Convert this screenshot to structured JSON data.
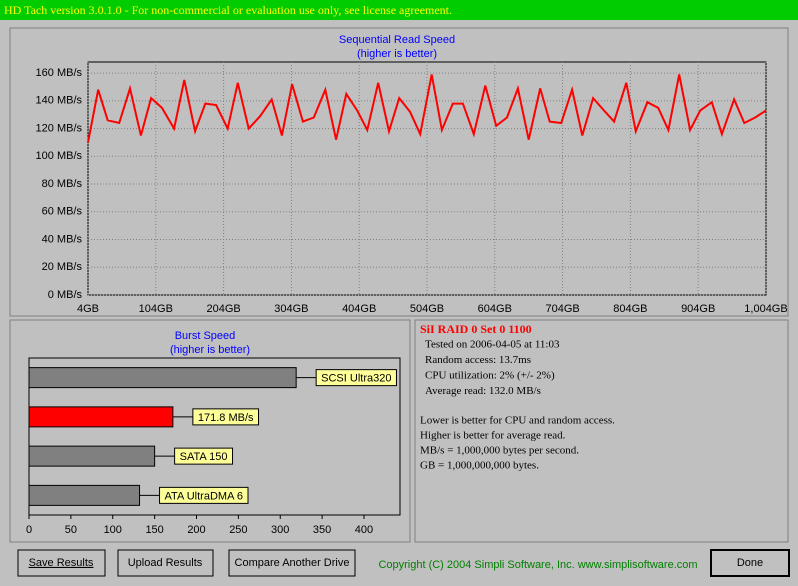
{
  "window_title": "HD Tach version 3.0.1.0  - For non-commercial or evaluation use only, see license agreement.",
  "chart_data": [
    {
      "type": "line",
      "title": "Sequential Read Speed",
      "subtitle": "(higher is better)",
      "color": "#ff0000",
      "grid": true,
      "x": [
        4,
        19,
        33,
        50,
        66,
        82,
        97,
        113,
        131,
        146,
        162,
        177,
        193,
        210,
        225,
        241,
        258,
        275,
        290,
        305,
        321,
        337,
        354,
        370,
        385,
        401,
        416,
        432,
        448,
        463,
        479,
        494,
        511,
        526,
        542,
        557,
        573,
        590,
        606,
        622,
        638,
        654,
        671,
        685,
        702,
        718,
        733,
        749,
        765,
        780,
        798,
        812,
        829,
        845,
        860,
        876,
        892,
        907,
        924,
        939,
        957,
        972,
        988,
        1004
      ],
      "values": [
        110,
        148,
        126,
        124,
        149,
        115,
        142,
        135,
        120,
        155,
        118,
        138,
        137,
        120,
        153,
        120,
        129,
        141,
        115,
        152,
        125,
        128,
        148,
        112,
        145,
        133,
        119,
        153,
        118,
        142,
        132,
        116,
        159,
        119,
        138,
        138,
        116,
        151,
        122,
        128,
        149,
        112,
        149,
        125,
        124,
        148,
        115,
        142,
        133,
        125,
        153,
        118,
        139,
        135,
        119,
        159,
        119,
        133,
        139,
        116,
        141,
        124,
        128,
        133
      ],
      "xlim": [
        4,
        1004
      ],
      "ylim": [
        0,
        168
      ],
      "xticks": [
        {
          "value": 4,
          "label": "4GB"
        },
        {
          "value": 104,
          "label": "104GB"
        },
        {
          "value": 204,
          "label": "204GB"
        },
        {
          "value": 304,
          "label": "304GB"
        },
        {
          "value": 404,
          "label": "404GB"
        },
        {
          "value": 504,
          "label": "504GB"
        },
        {
          "value": 604,
          "label": "604GB"
        },
        {
          "value": 704,
          "label": "704GB"
        },
        {
          "value": 804,
          "label": "804GB"
        },
        {
          "value": 904,
          "label": "904GB"
        },
        {
          "value": 1004,
          "label": "1,004GB"
        }
      ],
      "yticks": [
        {
          "value": 0,
          "label": "0 MB/s"
        },
        {
          "value": 20,
          "label": "20 MB/s"
        },
        {
          "value": 40,
          "label": "40 MB/s"
        },
        {
          "value": 60,
          "label": "60 MB/s"
        },
        {
          "value": 80,
          "label": "80 MB/s"
        },
        {
          "value": 100,
          "label": "100 MB/s"
        },
        {
          "value": 120,
          "label": "120 MB/s"
        },
        {
          "value": 140,
          "label": "140 MB/s"
        },
        {
          "value": 160,
          "label": "160 MB/s"
        }
      ]
    },
    {
      "type": "bar",
      "orientation": "horizontal",
      "title": "Burst Speed",
      "subtitle": "(higher is better)",
      "categories": [
        "SCSI Ultra320",
        "171.8 MB/s",
        "SATA 150",
        "ATA UltraDMA 6"
      ],
      "values": [
        319,
        171.8,
        150,
        132
      ],
      "colors": [
        "#808080",
        "#ff0000",
        "#808080",
        "#808080"
      ],
      "xlim": [
        0,
        443
      ],
      "xticks": [
        0,
        50,
        100,
        150,
        200,
        250,
        300,
        350,
        400
      ]
    }
  ],
  "info": {
    "title": "SiI RAID 0 Set 0 1100",
    "lines": [
      "Tested on 2006-04-05 at 11:03",
      "Random access: 13.7ms",
      "CPU utilization: 2% (+/- 2%)",
      "Average read: 132.0 MB/s"
    ],
    "notes": [
      "Lower is better for CPU and random access.",
      "Higher is better for average read.",
      "MB/s = 1,000,000 bytes per second.",
      "GB = 1,000,000,000 bytes."
    ]
  },
  "buttons": [
    "Save Results",
    "Upload Results",
    "Compare Another Drive",
    "Done"
  ],
  "copyright": "Copyright (C) 2004 Simpli Software, Inc. www.simplisoftware.com"
}
